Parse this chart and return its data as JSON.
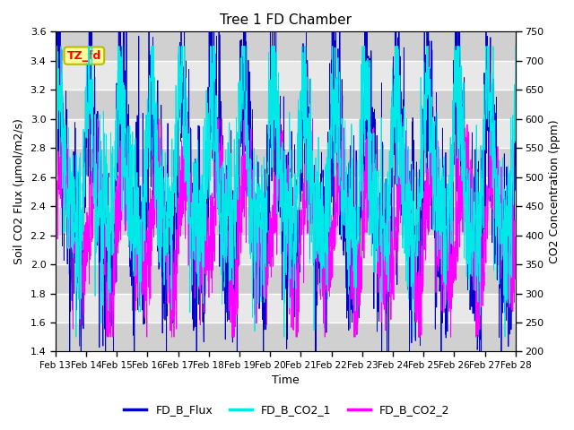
{
  "title": "Tree 1 FD Chamber",
  "xlabel": "Time",
  "ylabel_left": "Soil CO2 Flux (μmol/m2/s)",
  "ylabel_right": "CO2 Concentration (ppm)",
  "ylim_left": [
    1.4,
    3.6
  ],
  "ylim_right": [
    200,
    750
  ],
  "yticks_left": [
    1.4,
    1.6,
    1.8,
    2.0,
    2.2,
    2.4,
    2.6,
    2.8,
    3.0,
    3.2,
    3.4,
    3.6
  ],
  "yticks_right": [
    200,
    250,
    300,
    350,
    400,
    450,
    500,
    550,
    600,
    650,
    700,
    750
  ],
  "xtick_labels": [
    "Feb 13",
    "Feb 14",
    "Feb 15",
    "Feb 16",
    "Feb 17",
    "Feb 18",
    "Feb 19",
    "Feb 20",
    "Feb 21",
    "Feb 22",
    "Feb 23",
    "Feb 24",
    "Feb 25",
    "Feb 26",
    "Feb 27",
    "Feb 28"
  ],
  "n_days": 15,
  "n_points_per_day": 144,
  "color_flux": "#0000cc",
  "color_co2_1": "#00e8e8",
  "color_co2_2": "#ff00ff",
  "legend_labels": [
    "FD_B_Flux",
    "FD_B_CO2_1",
    "FD_B_CO2_2"
  ],
  "annotation_text": "TZ_fd",
  "bg_color_light": "#e8e8e8",
  "bg_color_dark": "#d0d0d0",
  "seed": 12345,
  "linewidth": 0.6,
  "title_fontsize": 11,
  "label_fontsize": 9,
  "tick_fontsize": 8,
  "legend_fontsize": 9
}
